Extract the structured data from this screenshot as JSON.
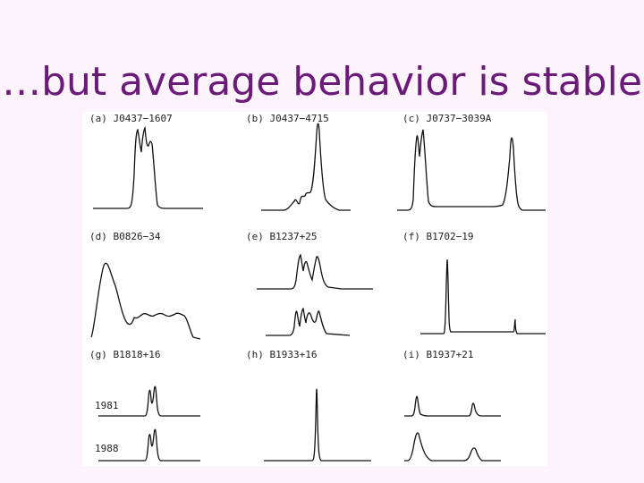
{
  "slide": {
    "title": "…but average behavior is stable"
  },
  "figure": {
    "panels": [
      {
        "id": "a",
        "label": "(a)  J0437−1607"
      },
      {
        "id": "b",
        "label": "(b)  J0437−4715"
      },
      {
        "id": "c",
        "label": "(c)  J0737−3039A"
      },
      {
        "id": "d",
        "label": "(d)  B0826−34"
      },
      {
        "id": "e",
        "label": "(e)  B1237+25"
      },
      {
        "id": "f",
        "label": "(f)  B1702−19"
      },
      {
        "id": "g",
        "label": "(g)  B1818+16"
      },
      {
        "id": "h",
        "label": "(h)  B1933+16"
      },
      {
        "id": "i",
        "label": "(i)  B1937+21"
      }
    ],
    "years": [
      "1981",
      "1988"
    ]
  }
}
